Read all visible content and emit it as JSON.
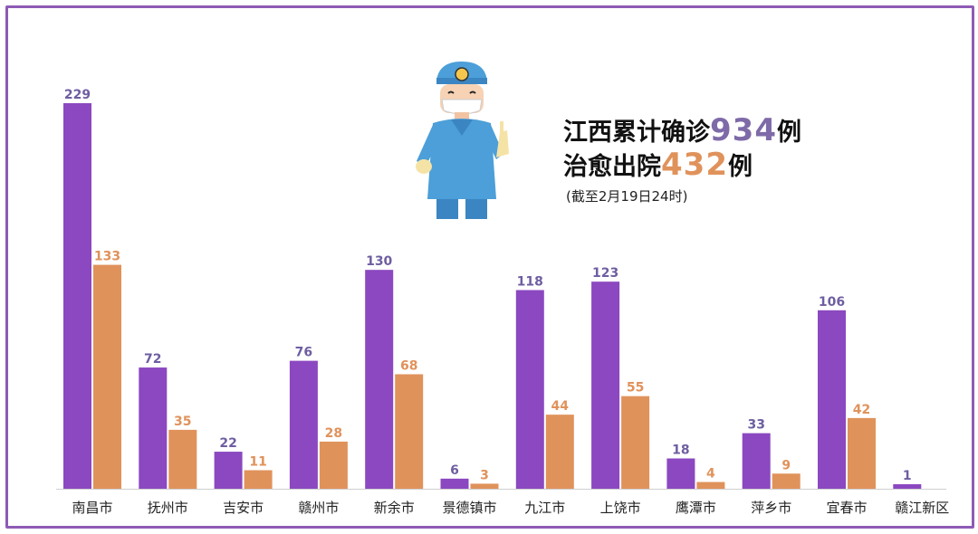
{
  "headline": {
    "line1_prefix": "江西累计确诊",
    "confirmed_total": "934",
    "line1_suffix": "例",
    "line2_prefix": "治愈出院",
    "cured_total": "432",
    "line2_suffix": "例",
    "note": "(截至2月19日24时)"
  },
  "colors": {
    "confirmed": "#8b48c0",
    "cured": "#e0925b",
    "confirmed_label": "#6e5ea1",
    "cured_label": "#e0925b",
    "frame": "#8e5bb5"
  },
  "chart_data": {
    "type": "bar",
    "title": "",
    "xlabel": "",
    "ylabel": "",
    "ylim": [
      0,
      229
    ],
    "grid": false,
    "categories": [
      "南昌市",
      "抚州市",
      "吉安市",
      "赣州市",
      "新余市",
      "景德镇市",
      "九江市",
      "上饶市",
      "鹰潭市",
      "萍乡市",
      "宜春市",
      "赣江新区"
    ],
    "series": [
      {
        "name": "",
        "values": [
          229,
          72,
          22,
          76,
          130,
          6,
          118,
          123,
          18,
          33,
          106,
          1
        ]
      },
      {
        "name": "",
        "values": [
          133,
          35,
          11,
          28,
          68,
          3,
          44,
          55,
          4,
          9,
          42,
          null
        ]
      }
    ]
  }
}
